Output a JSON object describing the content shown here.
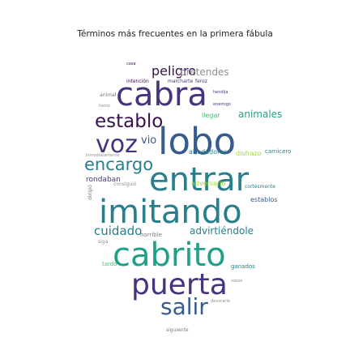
{
  "title": "Términos más frecuentes en la primera fábula",
  "palette": [
    "#3b0f4f",
    "#46327e",
    "#365c8d",
    "#277f8e",
    "#1fa187",
    "#4ac16d",
    "#a0da39",
    "#fde725"
  ],
  "words": [
    {
      "text": "casa",
      "color": "#3b0f4f"
    },
    {
      "text": "peligro",
      "color": "#3b0f4f"
    },
    {
      "text": "pretendes",
      "color": "#8f8f8f"
    },
    {
      "text": "intención",
      "color": "#3b0f4f"
    },
    {
      "text": "marcharte",
      "color": "#46327e"
    },
    {
      "text": "feroz",
      "color": "#46327e"
    },
    {
      "text": "animal",
      "color": "#7a7a7a"
    },
    {
      "text": "cabra",
      "color": "#46327e"
    },
    {
      "text": "hendija",
      "color": "#46327e"
    },
    {
      "text": "llamo",
      "color": "#8f8f8f"
    },
    {
      "text": "enemigo",
      "color": "#46327e"
    },
    {
      "text": "establo",
      "color": "#3b0f4f"
    },
    {
      "text": "llegar",
      "color": "#4ac16d"
    },
    {
      "text": "animales",
      "color": "#1fa187"
    },
    {
      "text": "voz",
      "color": "#46327e"
    },
    {
      "text": "lobo",
      "color": "#365c8d"
    },
    {
      "text": "vio",
      "color": "#365c8d"
    },
    {
      "text": "inmediatamente",
      "color": "#8f8f8f"
    },
    {
      "text": "alrededores",
      "color": "#277f8e"
    },
    {
      "text": "disfrazo",
      "color": "#a0da39"
    },
    {
      "text": "carnicero",
      "color": "#277f8e"
    },
    {
      "text": "encargo",
      "color": "#277f8e"
    },
    {
      "text": "rondaban",
      "color": "#46327e"
    },
    {
      "text": "entrar",
      "color": "#277f8e"
    },
    {
      "text": "dirigió",
      "color": "#7a7a7a"
    },
    {
      "text": "consiguió",
      "color": "#8f8f8f"
    },
    {
      "text": "adversario",
      "color": "#a0da39"
    },
    {
      "text": "cortésmente",
      "color": "#277f8e"
    },
    {
      "text": "imitando",
      "color": "#277f8e"
    },
    {
      "text": "establos",
      "color": "#365c8d"
    },
    {
      "text": "cuidado",
      "color": "#277f8e"
    },
    {
      "text": "advirtiéndole",
      "color": "#277f8e"
    },
    {
      "text": "horrible",
      "color": "#7a7a7a"
    },
    {
      "text": "siga",
      "color": "#8f8f8f"
    },
    {
      "text": "cabrito",
      "color": "#1fa187"
    },
    {
      "text": "tardo",
      "color": "#4ac16d"
    },
    {
      "text": "puerta",
      "color": "#46327e"
    },
    {
      "text": "ganados",
      "color": "#277f8e"
    },
    {
      "text": "vasos",
      "color": "#8f8f8f"
    },
    {
      "text": "salir",
      "color": "#365c8d"
    },
    {
      "text": "devorarle",
      "color": "#8f8f8f"
    },
    {
      "text": "siguiente",
      "color": "#7a7a7a"
    }
  ]
}
